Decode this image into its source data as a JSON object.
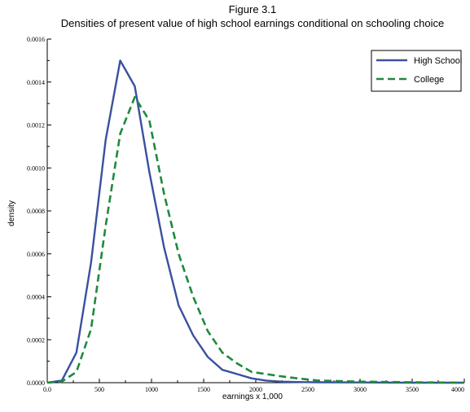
{
  "chart_data": {
    "type": "line",
    "title": "Figure 3.1",
    "subtitle": "Densities of present value of high school earnings conditional on schooling choice",
    "xlabel": "earnings x 1,000",
    "ylabel": "density",
    "xlim": [
      0,
      4000
    ],
    "ylim": [
      0,
      0.0016
    ],
    "xticks": [
      0,
      500,
      1000,
      1500,
      2000,
      2500,
      3000,
      3500,
      4000
    ],
    "xtick_labels": [
      "0.0",
      "500",
      "1000",
      "1500",
      "2000",
      "2500",
      "3000",
      "3500",
      "4000"
    ],
    "yticks": [
      0,
      0.0002,
      0.0004,
      0.0006,
      0.0008,
      0.001,
      0.0012,
      0.0014,
      0.0016
    ],
    "ytick_labels": [
      "0.0000",
      "0.0002",
      "0.0004",
      "0.0006",
      "0.0008",
      "0.0010",
      "0.0012",
      "0.0014",
      "0.0016"
    ],
    "grid": false,
    "legend_position": "top-right",
    "series": [
      {
        "name": "High School",
        "color": "#3a50a0",
        "style": "solid",
        "x": [
          0,
          140,
          280,
          420,
          560,
          700,
          840,
          980,
          1120,
          1260,
          1400,
          1540,
          1680,
          1820,
          1960,
          2100,
          2240,
          2400,
          2600,
          3000,
          3500,
          4000
        ],
        "y": [
          0,
          1e-05,
          0.00014,
          0.00056,
          0.00113,
          0.0015,
          0.00138,
          0.00098,
          0.00063,
          0.00036,
          0.00022,
          0.00012,
          6e-05,
          4e-05,
          2e-05,
          1e-05,
          5e-06,
          3e-06,
          2e-06,
          1e-06,
          0,
          0
        ]
      },
      {
        "name": "College",
        "color": "#1e8a3c",
        "style": "dashed",
        "x": [
          0,
          140,
          280,
          420,
          560,
          700,
          840,
          980,
          1120,
          1260,
          1400,
          1540,
          1680,
          1820,
          1960,
          2100,
          2240,
          2400,
          2600,
          3000,
          3500,
          4000
        ],
        "y": [
          0,
          5e-06,
          5e-05,
          0.00025,
          0.00073,
          0.00116,
          0.00133,
          0.00122,
          0.00088,
          0.0006,
          0.0004,
          0.00024,
          0.00014,
          9e-05,
          5e-05,
          4e-05,
          3e-05,
          2e-05,
          1e-05,
          5e-06,
          2e-06,
          0
        ]
      }
    ]
  }
}
